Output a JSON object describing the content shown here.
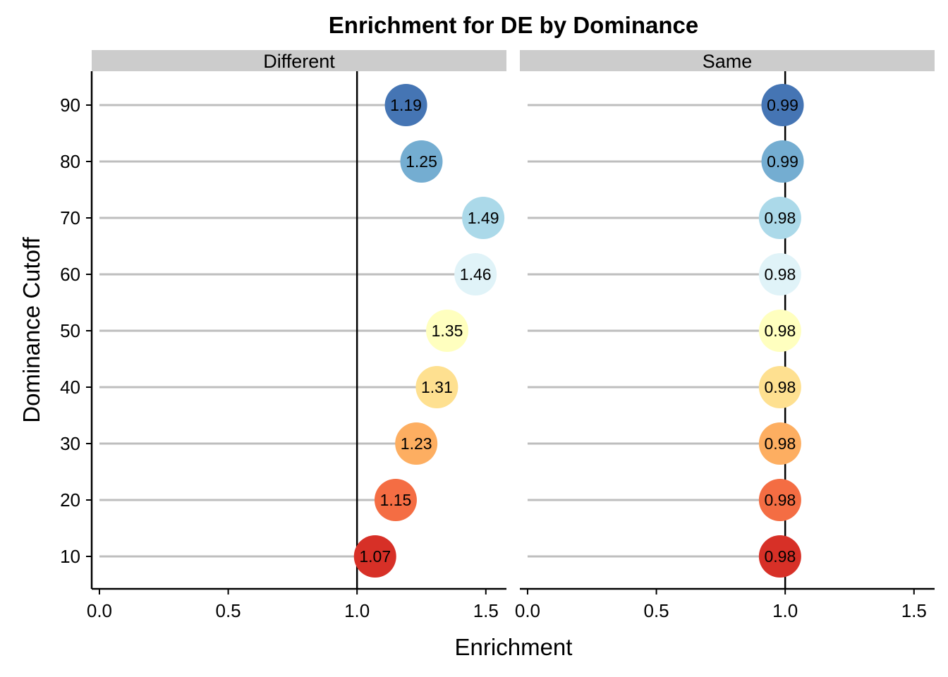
{
  "chart_data": {
    "type": "lollipop",
    "title": "Enrichment for DE by Dominance",
    "xlabel": "Enrichment",
    "ylabel": "Dominance Cutoff",
    "xlim": [
      -0.03,
      1.58
    ],
    "x_ticks": [
      "0.0",
      "0.5",
      "1.0",
      "1.5"
    ],
    "x_tick_values": [
      0,
      0.5,
      1.0,
      1.5
    ],
    "y_ticks": [
      "10",
      "20",
      "30",
      "40",
      "50",
      "60",
      "70",
      "80",
      "90"
    ],
    "y_tick_values": [
      10,
      20,
      30,
      40,
      50,
      60,
      70,
      80,
      90
    ],
    "reference_line_x": 1.0,
    "lollipop_start_x": 0,
    "grid": false,
    "legend": "none",
    "colors_by_cutoff": {
      "10": "#d73027",
      "20": "#f46d43",
      "30": "#fdae61",
      "40": "#fee090",
      "50": "#ffffbf",
      "60": "#e0f3f8",
      "70": "#abd9e9",
      "80": "#74add1",
      "90": "#4575b4"
    },
    "segment_color": "#bebebe",
    "strip_color": "#cccccc",
    "panels": [
      {
        "name": "Different",
        "points": [
          {
            "cutoff": 10,
            "value": 1.07,
            "label": "1.07"
          },
          {
            "cutoff": 20,
            "value": 1.15,
            "label": "1.15"
          },
          {
            "cutoff": 30,
            "value": 1.23,
            "label": "1.23"
          },
          {
            "cutoff": 40,
            "value": 1.31,
            "label": "1.31"
          },
          {
            "cutoff": 50,
            "value": 1.35,
            "label": "1.35"
          },
          {
            "cutoff": 60,
            "value": 1.46,
            "label": "1.46"
          },
          {
            "cutoff": 70,
            "value": 1.49,
            "label": "1.49"
          },
          {
            "cutoff": 80,
            "value": 1.25,
            "label": "1.25"
          },
          {
            "cutoff": 90,
            "value": 1.19,
            "label": "1.19"
          }
        ]
      },
      {
        "name": "Same",
        "points": [
          {
            "cutoff": 10,
            "value": 0.98,
            "label": "0.98"
          },
          {
            "cutoff": 20,
            "value": 0.98,
            "label": "0.98"
          },
          {
            "cutoff": 30,
            "value": 0.98,
            "label": "0.98"
          },
          {
            "cutoff": 40,
            "value": 0.98,
            "label": "0.98"
          },
          {
            "cutoff": 50,
            "value": 0.98,
            "label": "0.98"
          },
          {
            "cutoff": 60,
            "value": 0.98,
            "label": "0.98"
          },
          {
            "cutoff": 70,
            "value": 0.98,
            "label": "0.98"
          },
          {
            "cutoff": 80,
            "value": 0.99,
            "label": "0.99"
          },
          {
            "cutoff": 90,
            "value": 0.99,
            "label": "0.99"
          }
        ]
      }
    ]
  }
}
